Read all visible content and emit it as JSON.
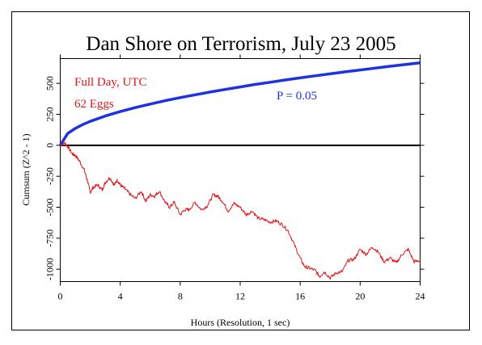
{
  "chart_data": {
    "type": "line",
    "title": "Dan Shore on Terrorism, July 23 2005",
    "xlabel": "Hours (Resolution, 1 sec)",
    "ylabel": "Cumsum (Z^2 - 1)",
    "xlim": [
      0,
      24
    ],
    "ylim": [
      -1100,
      700
    ],
    "x_ticks": [
      0,
      4,
      8,
      12,
      16,
      20,
      24
    ],
    "y_ticks": [
      -1000,
      -750,
      -500,
      -250,
      0,
      250,
      500
    ],
    "annotations": {
      "period": "Full Day, UTC",
      "eggs": "62 Eggs",
      "probability": "P = 0.05"
    },
    "colors": {
      "cumsum": "#e0161b",
      "envelope": "#1f32e0",
      "zero_line": "#000000"
    },
    "series": [
      {
        "key": "cumsum",
        "x": [
          0,
          0.3,
          0.5,
          0.8,
          1.0,
          1.3,
          1.6,
          1.8,
          2.0,
          2.2,
          2.5,
          2.8,
          3.0,
          3.3,
          3.6,
          3.8,
          4.0,
          4.3,
          4.6,
          5.0,
          5.4,
          5.7,
          6.0,
          6.3,
          6.6,
          7.0,
          7.3,
          7.6,
          8.0,
          8.3,
          8.6,
          9.0,
          9.4,
          9.8,
          10.2,
          10.5,
          10.8,
          11.2,
          11.6,
          12.0,
          12.4,
          12.8,
          13.2,
          13.6,
          14.0,
          14.4,
          14.8,
          15.2,
          15.6,
          16.0,
          16.3,
          16.6,
          17.0,
          17.3,
          17.6,
          18.0,
          18.4,
          18.8,
          19.2,
          19.6,
          20.0,
          20.4,
          20.8,
          21.2,
          21.6,
          22.0,
          22.4,
          22.8,
          23.2,
          23.6,
          24.0
        ],
        "y": [
          0,
          20,
          -10,
          -70,
          -80,
          -130,
          -200,
          -280,
          -380,
          -340,
          -320,
          -360,
          -300,
          -260,
          -320,
          -280,
          -320,
          -350,
          -390,
          -430,
          -370,
          -450,
          -400,
          -410,
          -370,
          -460,
          -500,
          -460,
          -560,
          -520,
          -520,
          -460,
          -520,
          -490,
          -400,
          -410,
          -450,
          -530,
          -470,
          -500,
          -560,
          -530,
          -590,
          -600,
          -620,
          -610,
          -640,
          -690,
          -800,
          -910,
          -980,
          -990,
          -1010,
          -1060,
          -1020,
          -1070,
          -1030,
          -1020,
          -930,
          -920,
          -840,
          -880,
          -820,
          -860,
          -940,
          -910,
          -950,
          -880,
          -840,
          -940,
          -930
        ]
      },
      {
        "key": "envelope",
        "x": [
          0,
          0.5,
          1,
          1.5,
          2,
          3,
          4,
          5,
          6,
          7,
          8,
          9,
          10,
          11,
          12,
          13,
          14,
          15,
          16,
          17,
          18,
          19,
          20,
          21,
          22,
          23,
          24
        ],
        "y": [
          0,
          96,
          136,
          167,
          193,
          236,
          272,
          304,
          333,
          360,
          385,
          408,
          430,
          451,
          471,
          491,
          509,
          527,
          544,
          561,
          577,
          593,
          608,
          623,
          638,
          652,
          666
        ]
      }
    ]
  }
}
